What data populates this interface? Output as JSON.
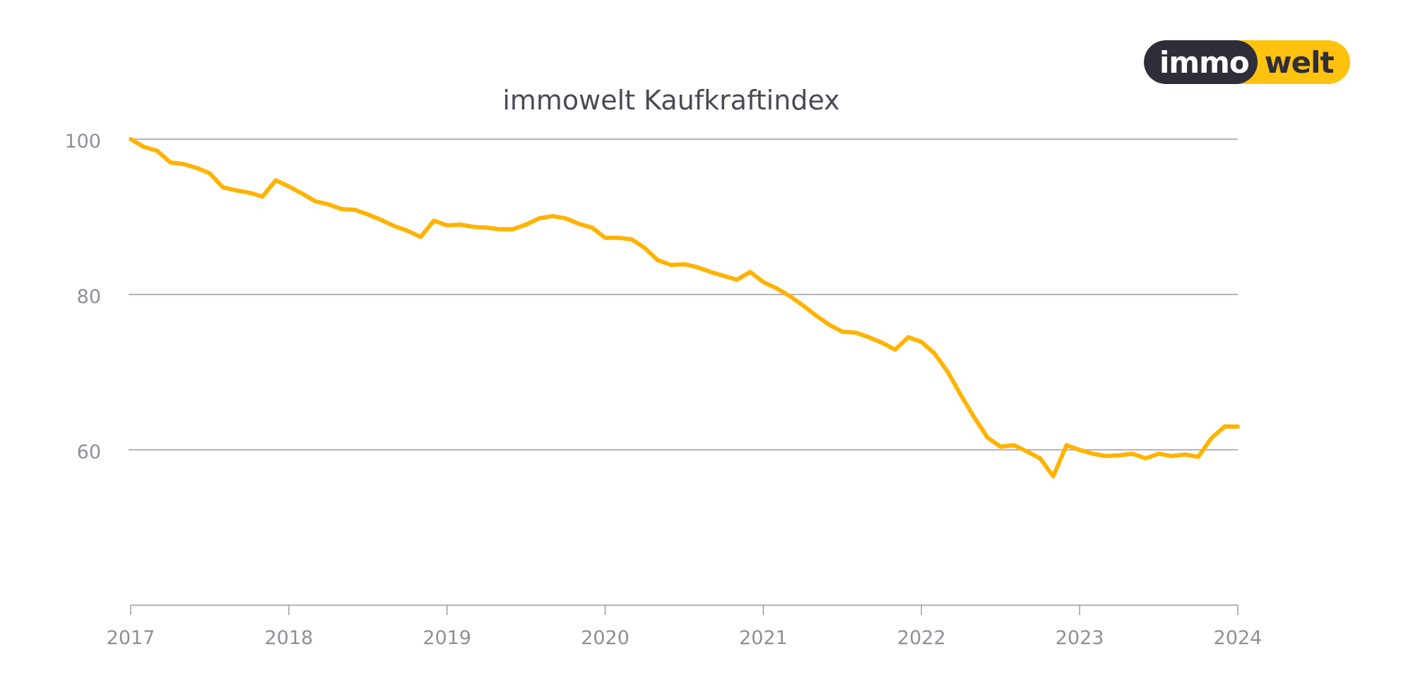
{
  "logo": {
    "part1": "immo",
    "part2": "welt",
    "colors": {
      "dark": "#2d2e38",
      "yellow": "#ffc20e"
    }
  },
  "chart_data": {
    "type": "line",
    "title": "immowelt Kaufkraftindex",
    "xlabel": "",
    "ylabel": "",
    "xlim": [
      2017,
      2024
    ],
    "ylim": [
      40,
      100
    ],
    "yticks": [
      100,
      80,
      60
    ],
    "xticks": [
      "2017",
      "2018",
      "2019",
      "2020",
      "2021",
      "2022",
      "2023",
      "2024"
    ],
    "grid": true,
    "legend": "none",
    "series": [
      {
        "color": "#ffb300",
        "x": [
          2017.0,
          2017.083,
          2017.167,
          2017.25,
          2017.333,
          2017.417,
          2017.5,
          2017.583,
          2017.667,
          2017.75,
          2017.833,
          2017.917,
          2018.0,
          2018.083,
          2018.167,
          2018.25,
          2018.333,
          2018.417,
          2018.5,
          2018.583,
          2018.667,
          2018.75,
          2018.833,
          2018.917,
          2019.0,
          2019.083,
          2019.167,
          2019.25,
          2019.333,
          2019.417,
          2019.5,
          2019.583,
          2019.667,
          2019.75,
          2019.833,
          2019.917,
          2020.0,
          2020.083,
          2020.167,
          2020.25,
          2020.333,
          2020.417,
          2020.5,
          2020.583,
          2020.667,
          2020.75,
          2020.833,
          2020.917,
          2021.0,
          2021.083,
          2021.167,
          2021.25,
          2021.333,
          2021.417,
          2021.5,
          2021.583,
          2021.667,
          2021.75,
          2021.833,
          2021.917,
          2022.0,
          2022.083,
          2022.167,
          2022.25,
          2022.333,
          2022.417,
          2022.5,
          2022.583,
          2022.667,
          2022.75,
          2022.833,
          2022.917,
          2023.0,
          2023.083,
          2023.167,
          2023.25,
          2023.333,
          2023.417,
          2023.5,
          2023.583,
          2023.667,
          2023.75,
          2023.833,
          2023.917,
          2024.0
        ],
        "values": [
          100.0,
          99.0,
          98.5,
          97.0,
          96.8,
          96.3,
          95.6,
          93.8,
          93.4,
          93.1,
          92.6,
          94.7,
          93.9,
          93.0,
          92.0,
          91.6,
          91.0,
          90.9,
          90.3,
          89.6,
          88.8,
          88.2,
          87.4,
          89.5,
          88.9,
          89.0,
          88.7,
          88.6,
          88.4,
          88.4,
          89.0,
          89.8,
          90.1,
          89.8,
          89.1,
          88.6,
          87.3,
          87.3,
          87.1,
          86.0,
          84.4,
          83.8,
          83.9,
          83.5,
          82.9,
          82.4,
          81.9,
          82.9,
          81.6,
          80.8,
          79.8,
          78.6,
          77.3,
          76.1,
          75.2,
          75.1,
          74.5,
          73.8,
          72.9,
          74.5,
          73.9,
          72.4,
          70.0,
          67.0,
          64.2,
          61.6,
          60.4,
          60.6,
          59.8,
          58.9,
          56.6,
          60.6,
          60.0,
          59.5,
          59.2,
          59.3,
          59.5,
          58.9,
          59.5,
          59.2,
          59.4,
          59.1,
          61.5,
          63.0,
          63.0
        ]
      }
    ]
  }
}
